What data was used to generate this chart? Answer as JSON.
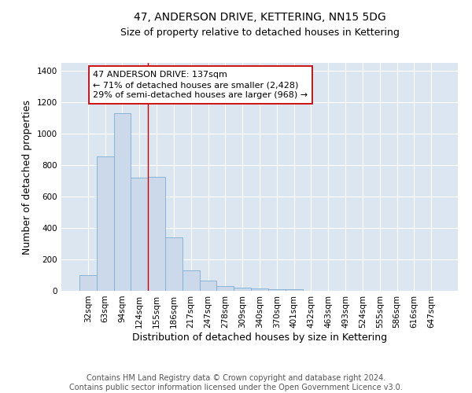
{
  "title": "47, ANDERSON DRIVE, KETTERING, NN15 5DG",
  "subtitle": "Size of property relative to detached houses in Kettering",
  "xlabel": "Distribution of detached houses by size in Kettering",
  "ylabel": "Number of detached properties",
  "bar_color": "#ccd9ea",
  "bar_edge_color": "#7bafd4",
  "categories": [
    "32sqm",
    "63sqm",
    "94sqm",
    "124sqm",
    "155sqm",
    "186sqm",
    "217sqm",
    "247sqm",
    "278sqm",
    "309sqm",
    "340sqm",
    "370sqm",
    "401sqm",
    "432sqm",
    "463sqm",
    "493sqm",
    "524sqm",
    "555sqm",
    "586sqm",
    "616sqm",
    "647sqm"
  ],
  "values": [
    100,
    855,
    1130,
    720,
    725,
    340,
    130,
    63,
    30,
    22,
    17,
    10,
    10,
    0,
    0,
    0,
    0,
    0,
    0,
    0,
    0
  ],
  "ylim": [
    0,
    1450
  ],
  "yticks": [
    0,
    200,
    400,
    600,
    800,
    1000,
    1200,
    1400
  ],
  "property_line_x": 3.5,
  "annotation_text": "47 ANDERSON DRIVE: 137sqm\n← 71% of detached houses are smaller (2,428)\n29% of semi-detached houses are larger (968) →",
  "annotation_box_color": "#ffffff",
  "annotation_box_edge": "#cc0000",
  "red_line_color": "#cc0000",
  "footer_text": "Contains HM Land Registry data © Crown copyright and database right 2024.\nContains public sector information licensed under the Open Government Licence v3.0.",
  "bg_color": "#dce6f0",
  "grid_color": "#ffffff",
  "title_fontsize": 10,
  "subtitle_fontsize": 9,
  "axis_label_fontsize": 9,
  "tick_fontsize": 7.5,
  "annotation_fontsize": 8,
  "footer_fontsize": 7
}
